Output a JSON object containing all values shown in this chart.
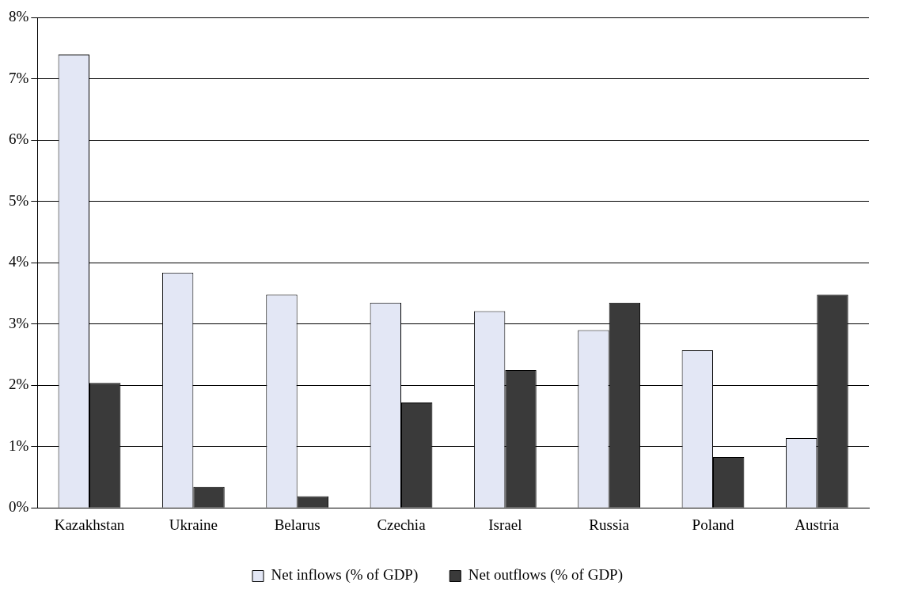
{
  "chart_data": {
    "type": "bar",
    "categories": [
      "Kazakhstan",
      "Ukraine",
      "Belarus",
      "Czechia",
      "Israel",
      "Russia",
      "Poland",
      "Austria"
    ],
    "series": [
      {
        "name": "Net inflows (% of GDP)",
        "color": "#e3e7f5",
        "values": [
          7.4,
          3.84,
          3.48,
          3.35,
          3.21,
          2.9,
          2.57,
          1.14
        ]
      },
      {
        "name": "Net outflows (% of GDP)",
        "color": "#3a3a3a",
        "values": [
          2.04,
          0.34,
          0.19,
          1.72,
          2.25,
          3.35,
          0.83,
          3.48
        ]
      }
    ],
    "ylim": [
      0,
      8
    ],
    "yticks": [
      {
        "value": 0,
        "label": "0%"
      },
      {
        "value": 1,
        "label": "1%"
      },
      {
        "value": 2,
        "label": "2%"
      },
      {
        "value": 3,
        "label": "3%"
      },
      {
        "value": 4,
        "label": "4%"
      },
      {
        "value": 5,
        "label": "5%"
      },
      {
        "value": 6,
        "label": "6%"
      },
      {
        "value": 7,
        "label": "7%"
      },
      {
        "value": 8,
        "label": "8%"
      }
    ],
    "grid": "y",
    "legend": "bottom"
  }
}
